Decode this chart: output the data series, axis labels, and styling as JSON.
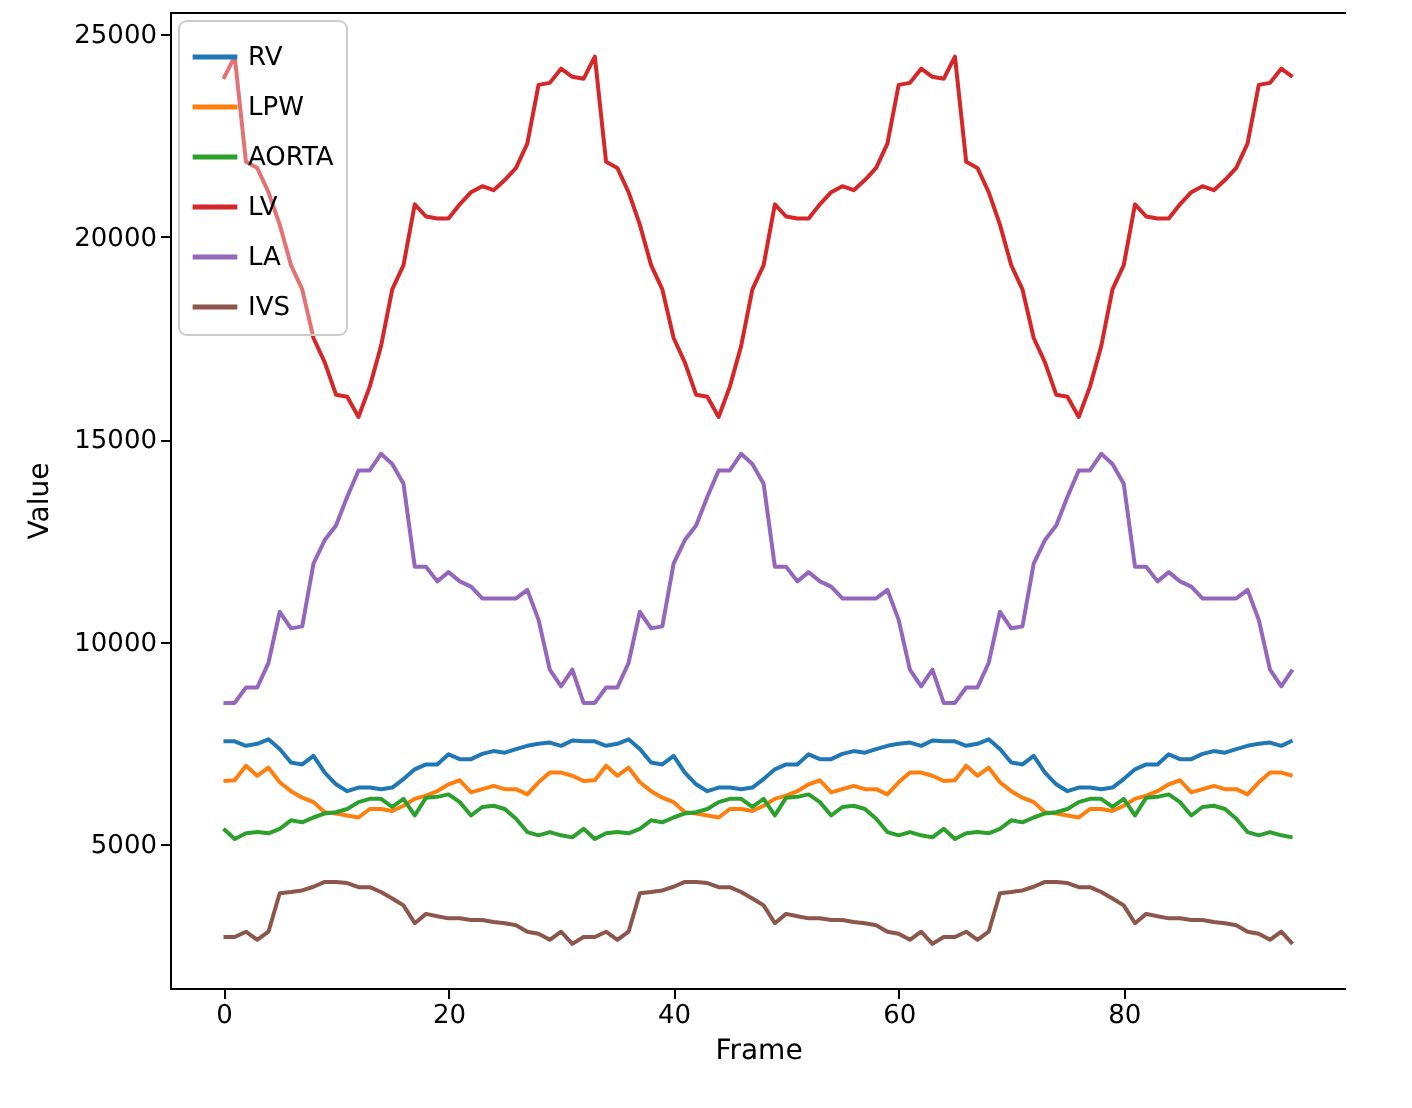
{
  "chart_data": {
    "type": "line",
    "xlabel": "Frame",
    "ylabel": "Value",
    "legend": "top left",
    "grid": false,
    "x": [
      0,
      1,
      2,
      3,
      4,
      5,
      6,
      7,
      8,
      9,
      10,
      11,
      12,
      13,
      14,
      15,
      16,
      17,
      18,
      19,
      20,
      21,
      22,
      23,
      24,
      25,
      26,
      27,
      28,
      29,
      30,
      31,
      32,
      33,
      34,
      35,
      36,
      37,
      38,
      39,
      40,
      41,
      42,
      43,
      44,
      45,
      46,
      47,
      48,
      49,
      50,
      51,
      52,
      53,
      54,
      55,
      56,
      57,
      58,
      59,
      60,
      61,
      62,
      63,
      64,
      65,
      66,
      67,
      68,
      69,
      70,
      71,
      72,
      73,
      74,
      75,
      76,
      77,
      78,
      79,
      80,
      81,
      82,
      83,
      84,
      85,
      86,
      87,
      88,
      89,
      90,
      91,
      92,
      93,
      94,
      95
    ],
    "xlim": [
      -4.75,
      99.75
    ],
    "xticks": [
      0,
      20,
      40,
      60,
      80
    ],
    "ylim": [
      1450,
      25550
    ],
    "yticks": [
      5000,
      10000,
      15000,
      20000,
      25000
    ],
    "series": [
      {
        "name": "RV",
        "color": "#1f77b4",
        "values": [
          7540,
          7540,
          7430,
          7480,
          7590,
          7350,
          7020,
          6970,
          7180,
          6770,
          6480,
          6310,
          6400,
          6400,
          6360,
          6400,
          6610,
          6850,
          6970,
          6970,
          7220,
          7100,
          7100,
          7230,
          7300,
          7260,
          7350,
          7430,
          7480,
          7510,
          7430,
          7560,
          7540,
          7540,
          7430,
          7480,
          7590,
          7350,
          7020,
          6970,
          7180,
          6770,
          6480,
          6310,
          6400,
          6400,
          6360,
          6400,
          6610,
          6850,
          6970,
          6970,
          7220,
          7100,
          7100,
          7230,
          7300,
          7260,
          7350,
          7430,
          7480,
          7510,
          7430,
          7560,
          7540,
          7540,
          7430,
          7480,
          7590,
          7350,
          7020,
          6970,
          7180,
          6770,
          6480,
          6310,
          6400,
          6400,
          6360,
          6400,
          6610,
          6850,
          6970,
          6970,
          7220,
          7100,
          7100,
          7230,
          7300,
          7260,
          7350,
          7430,
          7480,
          7510,
          7430,
          7560
        ]
      },
      {
        "name": "LPW",
        "color": "#ff7f0e",
        "values": [
          6560,
          6580,
          6940,
          6690,
          6890,
          6530,
          6310,
          6150,
          6040,
          5790,
          5760,
          5710,
          5660,
          5870,
          5870,
          5820,
          5950,
          6120,
          6200,
          6310,
          6480,
          6580,
          6280,
          6360,
          6440,
          6360,
          6360,
          6230,
          6530,
          6770,
          6770,
          6690,
          6560,
          6580,
          6940,
          6690,
          6890,
          6530,
          6310,
          6150,
          6040,
          5790,
          5760,
          5710,
          5660,
          5870,
          5870,
          5820,
          5950,
          6120,
          6200,
          6310,
          6480,
          6580,
          6280,
          6360,
          6440,
          6360,
          6360,
          6230,
          6530,
          6770,
          6770,
          6690,
          6560,
          6580,
          6940,
          6690,
          6890,
          6530,
          6310,
          6150,
          6040,
          5790,
          5760,
          5710,
          5660,
          5870,
          5870,
          5820,
          5950,
          6120,
          6200,
          6310,
          6480,
          6580,
          6280,
          6360,
          6440,
          6360,
          6360,
          6230,
          6530,
          6770,
          6770,
          6690
        ]
      },
      {
        "name": "AORTA",
        "color": "#2ca02c",
        "values": [
          5380,
          5130,
          5270,
          5300,
          5270,
          5380,
          5590,
          5540,
          5660,
          5760,
          5790,
          5870,
          6040,
          6120,
          6120,
          5920,
          6120,
          5710,
          6150,
          6170,
          6230,
          6040,
          5710,
          5920,
          5950,
          5870,
          5630,
          5300,
          5220,
          5300,
          5220,
          5170,
          5380,
          5130,
          5270,
          5300,
          5270,
          5380,
          5590,
          5540,
          5660,
          5760,
          5790,
          5870,
          6040,
          6120,
          6120,
          5920,
          6120,
          5710,
          6150,
          6170,
          6230,
          6040,
          5710,
          5920,
          5950,
          5870,
          5630,
          5300,
          5220,
          5300,
          5220,
          5170,
          5380,
          5130,
          5270,
          5300,
          5270,
          5380,
          5590,
          5540,
          5660,
          5760,
          5790,
          5870,
          6040,
          6120,
          6120,
          5920,
          6120,
          5710,
          6150,
          6170,
          6230,
          6040,
          5710,
          5920,
          5950,
          5870,
          5630,
          5300,
          5220,
          5300,
          5220,
          5170
        ]
      },
      {
        "name": "LV",
        "color": "#d62728",
        "values": [
          23900,
          24450,
          21850,
          21700,
          21100,
          20300,
          19300,
          18700,
          17500,
          16900,
          16100,
          16050,
          15550,
          16300,
          17300,
          18700,
          19300,
          20800,
          20500,
          20450,
          20450,
          20800,
          21100,
          21250,
          21150,
          21400,
          21700,
          22300,
          23750,
          23800,
          24150,
          23950,
          23900,
          24450,
          21850,
          21700,
          21100,
          20300,
          19300,
          18700,
          17500,
          16900,
          16100,
          16050,
          15550,
          16300,
          17300,
          18700,
          19300,
          20800,
          20500,
          20450,
          20450,
          20800,
          21100,
          21250,
          21150,
          21400,
          21700,
          22300,
          23750,
          23800,
          24150,
          23950,
          23900,
          24450,
          21850,
          21700,
          21100,
          20300,
          19300,
          18700,
          17500,
          16900,
          16100,
          16050,
          15550,
          16300,
          17300,
          18700,
          19300,
          20800,
          20500,
          20450,
          20450,
          20800,
          21100,
          21250,
          21150,
          21400,
          21700,
          22300,
          23750,
          23800,
          24150,
          23950
        ]
      },
      {
        "name": "LA",
        "color": "#9467bd",
        "values": [
          8490,
          8490,
          8870,
          8870,
          9480,
          10740,
          10330,
          10380,
          11930,
          12510,
          12870,
          13580,
          14230,
          14230,
          14640,
          14390,
          13900,
          11850,
          11850,
          11490,
          11720,
          11490,
          11360,
          11070,
          11070,
          11070,
          11070,
          11280,
          10540,
          9310,
          8900,
          9310,
          8490,
          8490,
          8870,
          8870,
          9480,
          10740,
          10330,
          10380,
          11930,
          12510,
          12870,
          13580,
          14230,
          14230,
          14640,
          14390,
          13900,
          11850,
          11850,
          11490,
          11720,
          11490,
          11360,
          11070,
          11070,
          11070,
          11070,
          11280,
          10540,
          9310,
          8900,
          9310,
          8490,
          8490,
          8870,
          8870,
          9480,
          10740,
          10330,
          10380,
          11930,
          12510,
          12870,
          13580,
          14230,
          14230,
          14640,
          14390,
          13900,
          11850,
          11850,
          11490,
          11720,
          11490,
          11360,
          11070,
          11070,
          11070,
          11070,
          11280,
          10540,
          9310,
          8900,
          9310
        ]
      },
      {
        "name": "IVS",
        "color": "#8c564b",
        "values": [
          2710,
          2710,
          2840,
          2640,
          2840,
          3790,
          3820,
          3860,
          3950,
          4070,
          4070,
          4040,
          3940,
          3940,
          3820,
          3660,
          3490,
          3050,
          3280,
          3220,
          3170,
          3170,
          3130,
          3130,
          3080,
          3050,
          3000,
          2840,
          2790,
          2640,
          2840,
          2540,
          2710,
          2710,
          2840,
          2640,
          2840,
          3790,
          3820,
          3860,
          3950,
          4070,
          4070,
          4040,
          3940,
          3940,
          3820,
          3660,
          3490,
          3050,
          3280,
          3220,
          3170,
          3170,
          3130,
          3130,
          3080,
          3050,
          3000,
          2840,
          2790,
          2640,
          2840,
          2540,
          2710,
          2710,
          2840,
          2640,
          2840,
          3790,
          3820,
          3860,
          3950,
          4070,
          4070,
          4040,
          3940,
          3940,
          3820,
          3660,
          3490,
          3050,
          3280,
          3220,
          3170,
          3170,
          3130,
          3130,
          3080,
          3050,
          3000,
          2840,
          2790,
          2640,
          2840,
          2540
        ]
      }
    ]
  }
}
